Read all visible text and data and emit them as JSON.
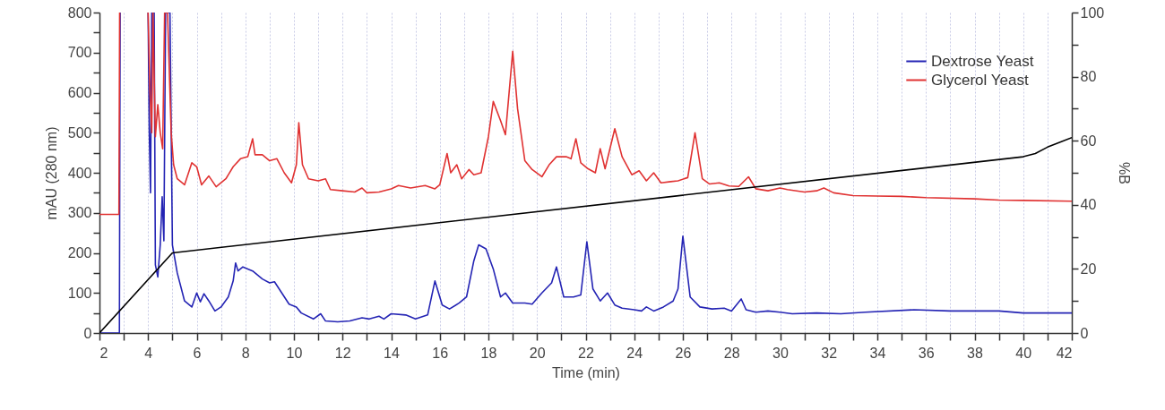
{
  "chart_data": {
    "type": "line",
    "xlabel": "Time (min)",
    "ylabel": "mAU (280 nm)",
    "y2label": "%B",
    "xlim": [
      2,
      42
    ],
    "xticks": [
      2,
      {
        "value": 3,
        "label": null
      },
      4,
      {
        "value": 5,
        "label": null
      },
      6,
      {
        "value": 7,
        "label": null
      },
      8,
      {
        "value": 9,
        "label": null
      },
      10,
      {
        "value": 11,
        "label": null
      },
      12,
      {
        "value": 13,
        "label": null
      },
      14,
      {
        "value": 15,
        "label": null
      },
      16,
      {
        "value": 17,
        "label": null
      },
      18,
      {
        "value": 19,
        "label": null
      },
      20,
      {
        "value": 21,
        "label": null
      },
      22,
      {
        "value": 23,
        "label": null
      },
      24,
      {
        "value": 25,
        "label": null
      },
      26,
      {
        "value": 27,
        "label": null
      },
      28,
      {
        "value": 29,
        "label": null
      },
      30,
      {
        "value": 31,
        "label": null
      },
      32,
      {
        "value": 33,
        "label": null
      },
      34,
      {
        "value": 35,
        "label": null
      },
      36,
      {
        "value": 37,
        "label": null
      },
      38,
      {
        "value": 39,
        "label": null
      },
      40,
      {
        "value": 41,
        "label": null
      },
      42
    ],
    "ylim": [
      0,
      800
    ],
    "yticks": [
      0,
      {
        "value": 50,
        "label": null
      },
      100,
      {
        "value": 150,
        "label": null
      },
      200,
      {
        "value": 250,
        "label": null
      },
      300,
      {
        "value": 350,
        "label": null
      },
      400,
      {
        "value": 450,
        "label": null
      },
      500,
      {
        "value": 550,
        "label": null
      },
      600,
      {
        "value": 650,
        "label": null
      },
      700,
      {
        "value": 750,
        "label": null
      },
      800
    ],
    "y2lim": [
      0,
      100
    ],
    "y2ticks": [
      0,
      {
        "value": 10,
        "label": null
      },
      20,
      {
        "value": 30,
        "label": null
      },
      40,
      {
        "value": 50,
        "label": null
      },
      60,
      {
        "value": 70,
        "label": null
      },
      80,
      {
        "value": 90,
        "label": null
      },
      100
    ],
    "grid": "x",
    "legend": "top right",
    "series": [
      {
        "name": "Dextrose Yeast",
        "color": "#2424b4",
        "x": [
          2,
          2.82,
          2.85,
          2.88,
          3.98,
          4.0,
          4.05,
          4.1,
          4.15,
          4.25,
          4.3,
          4.4,
          4.5,
          4.58,
          4.65,
          4.72,
          4.9,
          5.0,
          5.2,
          5.5,
          5.8,
          6.0,
          6.15,
          6.3,
          6.5,
          6.75,
          7.0,
          7.3,
          7.5,
          7.6,
          7.7,
          7.9,
          8.3,
          8.7,
          9.0,
          9.2,
          9.5,
          9.8,
          10.1,
          10.3,
          10.8,
          11.1,
          11.3,
          11.8,
          12.3,
          12.8,
          13.1,
          13.5,
          13.7,
          14.0,
          14.6,
          15.0,
          15.5,
          15.8,
          16.1,
          16.4,
          16.8,
          17.1,
          17.4,
          17.6,
          17.9,
          18.2,
          18.5,
          18.7,
          19.0,
          19.5,
          19.8,
          20.2,
          20.6,
          20.8,
          21.1,
          21.5,
          21.8,
          22.05,
          22.3,
          22.6,
          22.9,
          23.2,
          23.5,
          24.0,
          24.3,
          24.5,
          24.8,
          25.2,
          25.6,
          25.8,
          26.0,
          26.3,
          26.7,
          27.2,
          27.7,
          28.0,
          28.4,
          28.6,
          29.0,
          29.5,
          30,
          30.5,
          31.5,
          32.5,
          33.5,
          35.5,
          37,
          39,
          40,
          42
        ],
        "values": [
          0,
          0,
          800,
          null,
          null,
          800,
          500,
          350,
          800,
          800,
          170,
          140,
          220,
          340,
          230,
          800,
          800,
          220,
          150,
          80,
          65,
          100,
          78,
          98,
          80,
          55,
          65,
          90,
          130,
          175,
          155,
          165,
          155,
          135,
          125,
          128,
          100,
          72,
          65,
          50,
          35,
          48,
          30,
          28,
          30,
          38,
          35,
          42,
          35,
          48,
          45,
          35,
          45,
          130,
          70,
          60,
          75,
          90,
          180,
          220,
          210,
          160,
          90,
          100,
          75,
          75,
          72,
          100,
          125,
          165,
          90,
          90,
          95,
          228,
          110,
          80,
          100,
          70,
          62,
          58,
          55,
          65,
          55,
          65,
          80,
          110,
          242,
          90,
          65,
          60,
          62,
          55,
          85,
          58,
          52,
          55,
          52,
          48,
          50,
          48,
          52,
          58,
          55,
          55,
          50,
          50
        ]
      },
      {
        "name": "Glycerol Yeast",
        "color": "#e03232",
        "x": [
          2,
          2.8,
          2.83,
          2.86,
          3.98,
          4.0,
          4.08,
          4.15,
          4.2,
          4.3,
          4.4,
          4.5,
          4.6,
          4.68,
          4.8,
          4.95,
          5.05,
          5.2,
          5.5,
          5.8,
          6.0,
          6.2,
          6.5,
          6.8,
          7.2,
          7.5,
          7.8,
          8.1,
          8.3,
          8.4,
          8.7,
          9.0,
          9.3,
          9.6,
          9.9,
          10.1,
          10.2,
          10.35,
          10.6,
          11.0,
          11.3,
          11.5,
          12,
          12.5,
          12.8,
          13.0,
          13.5,
          14,
          14.3,
          14.8,
          15.4,
          15.8,
          16.0,
          16.3,
          16.45,
          16.7,
          16.9,
          17.2,
          17.4,
          17.7,
          18.0,
          18.2,
          18.5,
          18.7,
          19.0,
          19.2,
          19.5,
          19.8,
          20.2,
          20.5,
          20.8,
          21.2,
          21.4,
          21.6,
          21.8,
          22.1,
          22.4,
          22.6,
          22.8,
          23.2,
          23.5,
          23.9,
          24.2,
          24.5,
          24.8,
          25.1,
          25.5,
          25.8,
          26.2,
          26.5,
          26.8,
          27.1,
          27.5,
          27.9,
          28.3,
          28.7,
          29.0,
          29.5,
          30,
          30.3,
          31,
          31.5,
          31.8,
          32.2,
          33,
          34,
          35,
          36,
          38,
          39,
          40,
          42
        ],
        "values": [
          296,
          296,
          800,
          null,
          null,
          800,
          600,
          500,
          800,
          490,
          570,
          500,
          460,
          800,
          800,
          500,
          420,
          385,
          370,
          425,
          415,
          370,
          392,
          365,
          385,
          415,
          435,
          440,
          485,
          445,
          445,
          430,
          435,
          400,
          375,
          420,
          525,
          420,
          385,
          380,
          385,
          358,
          355,
          352,
          362,
          350,
          352,
          360,
          368,
          362,
          368,
          360,
          370,
          448,
          400,
          420,
          385,
          408,
          395,
          400,
          490,
          578,
          530,
          495,
          703,
          560,
          430,
          408,
          390,
          420,
          440,
          440,
          435,
          485,
          425,
          410,
          400,
          460,
          410,
          510,
          440,
          395,
          405,
          380,
          400,
          375,
          378,
          380,
          388,
          500,
          385,
          372,
          375,
          367,
          366,
          390,
          360,
          355,
          362,
          358,
          352,
          355,
          362,
          350,
          343,
          342,
          341,
          338,
          335,
          332,
          331,
          329
        ]
      },
      {
        "color": "#000000",
        "axis": "y2",
        "x": [
          2,
          5,
          40,
          40.5,
          41,
          41.5,
          42
        ],
        "values": [
          0,
          25,
          55,
          56,
          58,
          59.5,
          61
        ]
      }
    ]
  }
}
